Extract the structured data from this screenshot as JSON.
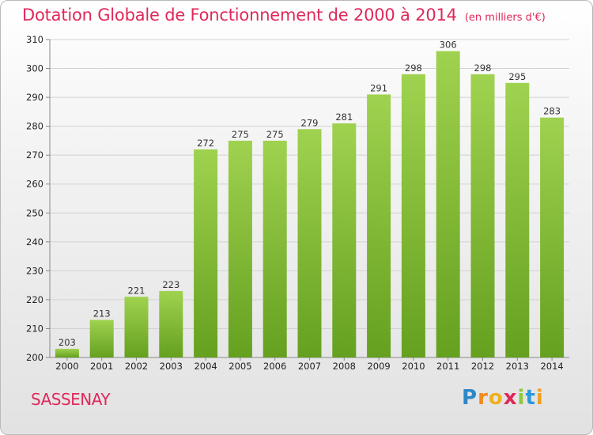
{
  "chart_data": {
    "type": "bar",
    "title": "Dotation Globale de Fonctionnement de 2000 à 2014",
    "unit_note": "(en milliers d'€)",
    "categories": [
      "2000",
      "2001",
      "2002",
      "2003",
      "2004",
      "2005",
      "2006",
      "2007",
      "2008",
      "2009",
      "2010",
      "2011",
      "2012",
      "2013",
      "2014"
    ],
    "values": [
      203,
      213,
      221,
      223,
      272,
      275,
      275,
      279,
      281,
      291,
      298,
      306,
      298,
      295,
      283
    ],
    "yticks": [
      200,
      210,
      220,
      230,
      240,
      250,
      260,
      270,
      280,
      290,
      300,
      310
    ],
    "ylim": [
      200,
      310
    ],
    "grid": true,
    "bar_color": "#8cc63f",
    "bar_color_dark": "#5f9a1c",
    "title_color": "#e0285a"
  },
  "footer": {
    "commune": "SASSENAY",
    "logo": {
      "p": "P",
      "r": "r",
      "o": "o",
      "x": "x",
      "i1": "i",
      "t": "t",
      "i2": "i"
    }
  }
}
